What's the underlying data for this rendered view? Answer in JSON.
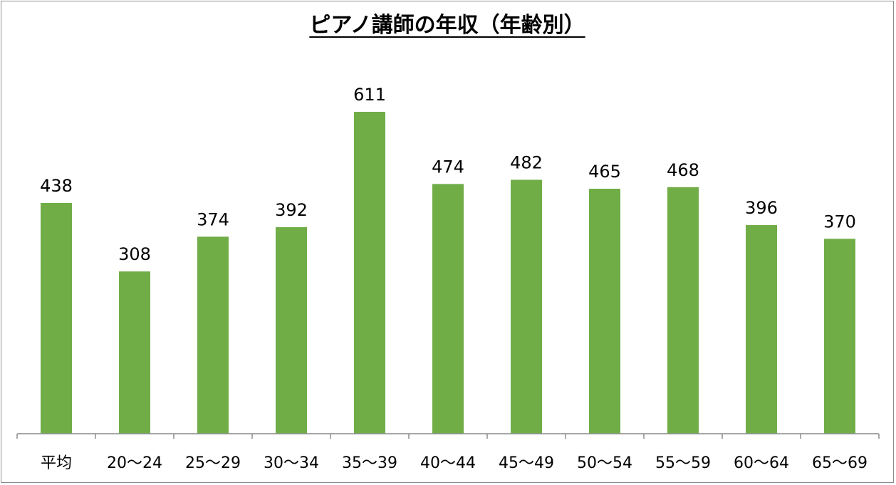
{
  "chart_data": {
    "type": "bar",
    "title": "ピアノ講師の年収（年齢別）",
    "xlabel": "",
    "ylabel": "",
    "categories": [
      "平均",
      "20〜24",
      "25〜29",
      "30〜34",
      "35〜39",
      "40〜44",
      "45〜49",
      "50〜54",
      "55〜59",
      "60〜64",
      "65〜69"
    ],
    "values": [
      438,
      308,
      374,
      392,
      611,
      474,
      482,
      465,
      468,
      396,
      370
    ],
    "ylim": [
      0,
      640
    ],
    "grid": false,
    "legend": "none",
    "bar_color": "#70ad47",
    "axis_color": "#8c8c8c"
  }
}
